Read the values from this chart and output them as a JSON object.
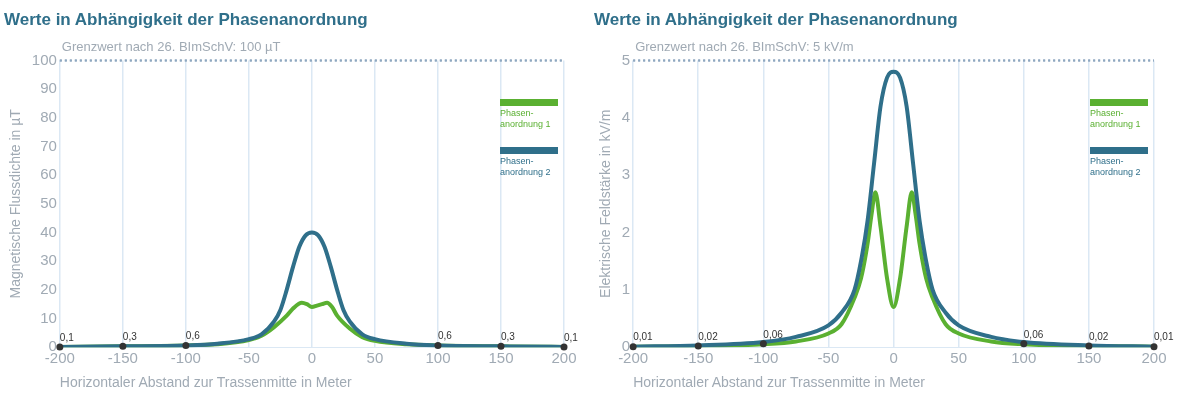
{
  "chart_data": [
    {
      "type": "line",
      "title": "Werte in Abhängigkeit der Phasenanordnung",
      "xlabel": "Horizontaler Abstand zur Trassenmitte in Meter",
      "ylabel": "Magnetische Flussdichte in µT",
      "xlim": [
        -200,
        200
      ],
      "xticks": [
        -200,
        -150,
        -100,
        -50,
        0,
        50,
        100,
        150,
        200
      ],
      "ylim": [
        0,
        100
      ],
      "yticks": [
        0,
        10,
        20,
        30,
        40,
        50,
        60,
        70,
        80,
        90,
        100
      ],
      "grid": "x",
      "legend": "right",
      "marker": "none",
      "line_style": "solid",
      "ref_lines": [
        {
          "axis": "y",
          "value": 100,
          "label": "Grenzwert nach 26. BImSchV: 100 µT",
          "color": "#8fa8c0",
          "line_style": "dotted"
        }
      ],
      "series": [
        {
          "name": "Phasen-anordnung 2",
          "color": "#2f6f8a",
          "x": [
            -200,
            -150,
            -100,
            -75,
            -50,
            -40,
            -30,
            -25,
            -20,
            -15,
            -10,
            -5,
            0,
            5,
            10,
            15,
            20,
            25,
            30,
            40,
            50,
            75,
            100,
            150,
            200
          ],
          "values": [
            0.1,
            0.3,
            0.6,
            1.2,
            2.8,
            4.5,
            9,
            13,
            20,
            28,
            35,
            39,
            40,
            39,
            35,
            28,
            20,
            13,
            9,
            4.5,
            2.8,
            1.2,
            0.6,
            0.3,
            0.1
          ]
        },
        {
          "name": "Phasen-anordnung 1",
          "color": "#5ab031",
          "x": [
            -200,
            -150,
            -100,
            -75,
            -50,
            -40,
            -30,
            -20,
            -15,
            -8,
            -4,
            0,
            4,
            8,
            12,
            16,
            20,
            30,
            40,
            50,
            75,
            100,
            150,
            200
          ],
          "values": [
            0.1,
            0.3,
            0.6,
            1,
            2.5,
            4,
            7,
            11,
            13.5,
            15.5,
            15,
            14,
            14.5,
            15,
            15.5,
            14,
            11,
            6.5,
            3.5,
            2.2,
            1,
            0.6,
            0.3,
            0.1
          ]
        }
      ],
      "annotations": [
        {
          "text": "0,1",
          "x": -200,
          "y": 0.1
        },
        {
          "text": "0,3",
          "x": -150,
          "y": 0.3
        },
        {
          "text": "0,6",
          "x": -100,
          "y": 0.6
        },
        {
          "text": "0,6",
          "x": 100,
          "y": 0.6
        },
        {
          "text": "0,3",
          "x": 150,
          "y": 0.3
        },
        {
          "text": "0,1",
          "x": 200,
          "y": 0.1
        }
      ]
    },
    {
      "type": "line",
      "title": "Werte in Abhängigkeit der Phasenanordnung",
      "xlabel": "Horizontaler Abstand zur Trassenmitte in Meter",
      "ylabel": "Elektrische Feldstärke in kV/m",
      "xlim": [
        -200,
        200
      ],
      "xticks": [
        -200,
        -150,
        -100,
        -50,
        0,
        50,
        100,
        150,
        200
      ],
      "ylim": [
        0,
        5
      ],
      "yticks": [
        0,
        1,
        2,
        3,
        4,
        5
      ],
      "grid": "x",
      "legend": "right",
      "marker": "none",
      "line_style": "solid",
      "ref_lines": [
        {
          "axis": "y",
          "value": 5,
          "label": "Grenzwert nach 26. BImSchV: 5 kV/m",
          "color": "#8fa8c0",
          "line_style": "dotted"
        }
      ],
      "series": [
        {
          "name": "Phasen-anordnung 2",
          "color": "#2f6f8a",
          "x": [
            -200,
            -150,
            -100,
            -75,
            -50,
            -40,
            -30,
            -25,
            -20,
            -15,
            -10,
            -5,
            0,
            5,
            10,
            15,
            20,
            25,
            30,
            40,
            50,
            75,
            100,
            150,
            200
          ],
          "values": [
            0.01,
            0.03,
            0.09,
            0.18,
            0.38,
            0.6,
            1,
            1.5,
            2.2,
            3.2,
            4.2,
            4.7,
            4.8,
            4.7,
            4.2,
            3.2,
            2.2,
            1.5,
            1,
            0.6,
            0.38,
            0.18,
            0.09,
            0.03,
            0.01
          ]
        },
        {
          "name": "Phasen-anordnung 1",
          "color": "#5ab031",
          "x": [
            -200,
            -150,
            -100,
            -75,
            -50,
            -40,
            -30,
            -25,
            -20,
            -17,
            -14,
            -10,
            -5,
            0,
            5,
            10,
            14,
            17,
            20,
            25,
            30,
            40,
            50,
            75,
            100,
            150,
            200
          ],
          "values": [
            0.01,
            0.02,
            0.05,
            0.1,
            0.24,
            0.4,
            0.86,
            1.2,
            1.8,
            2.3,
            2.7,
            2.1,
            1.2,
            0.7,
            1.2,
            2.1,
            2.7,
            2.3,
            1.8,
            1.2,
            0.86,
            0.4,
            0.24,
            0.1,
            0.05,
            0.02,
            0.01
          ]
        }
      ],
      "annotations": [
        {
          "text": "0,01",
          "x": -200,
          "y": 0.01
        },
        {
          "text": "0,02",
          "x": -150,
          "y": 0.02
        },
        {
          "text": "0,06",
          "x": -100,
          "y": 0.06
        },
        {
          "text": "0,06",
          "x": 100,
          "y": 0.06
        },
        {
          "text": "0,02",
          "x": 150,
          "y": 0.02
        },
        {
          "text": "0,01",
          "x": 200,
          "y": 0.01
        }
      ]
    }
  ]
}
